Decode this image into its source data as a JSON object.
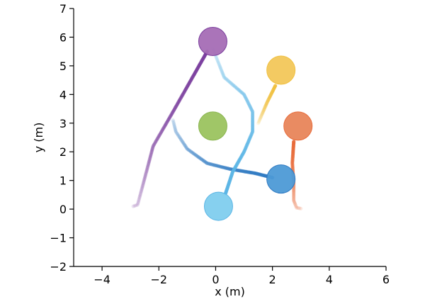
{
  "chart_data": {
    "type": "scatter",
    "title": "",
    "xlabel": "x (m)",
    "ylabel": "y (m)",
    "xlim": [
      -5,
      6
    ],
    "ylim": [
      -2,
      7
    ],
    "xticks": [
      -4,
      -2,
      0,
      2,
      4,
      6
    ],
    "yticks": [
      -2,
      -1,
      0,
      1,
      2,
      3,
      4,
      5,
      6,
      7
    ],
    "xtick_labels": [
      "−4",
      "−2",
      "0",
      "2",
      "4",
      "6"
    ],
    "ytick_labels": [
      "−2",
      "−1",
      "0",
      "1",
      "2",
      "3",
      "4",
      "5",
      "6",
      "7"
    ],
    "grid": false,
    "legend": "none",
    "series": [
      {
        "color": "#7b3f9e",
        "marker": {
          "x": -0.1,
          "y": 5.85
        },
        "marker_color": "#a56db5",
        "trajectory": [
          [
            -2.9,
            0.1
          ],
          [
            -2.75,
            0.15
          ],
          [
            -2.6,
            0.7
          ],
          [
            -2.2,
            2.2
          ],
          [
            -1.5,
            3.4
          ],
          [
            -0.7,
            4.8
          ],
          [
            -0.3,
            5.5
          ]
        ]
      },
      {
        "color": "#2f7ac2",
        "marker": {
          "x": 2.3,
          "y": 1.05
        },
        "marker_color": "#4d9ad6",
        "trajectory": [
          [
            -1.5,
            3.1
          ],
          [
            -1.4,
            2.7
          ],
          [
            -1.0,
            2.1
          ],
          [
            -0.3,
            1.6
          ],
          [
            0.5,
            1.4
          ],
          [
            1.4,
            1.25
          ],
          [
            2.0,
            1.1
          ]
        ]
      },
      {
        "color": "#5bb5e5",
        "marker": {
          "x": 0.1,
          "y": 0.1
        },
        "marker_color": "#7fcdee",
        "trajectory": [
          [
            -0.1,
            5.6
          ],
          [
            0.3,
            4.6
          ],
          [
            1.0,
            4.0
          ],
          [
            1.3,
            3.4
          ],
          [
            1.3,
            2.7
          ],
          [
            1.0,
            2.0
          ],
          [
            0.6,
            1.3
          ],
          [
            0.35,
            0.55
          ]
        ]
      },
      {
        "color": "#e86b3a",
        "marker": {
          "x": 2.9,
          "y": 2.9
        },
        "marker_color": "#e8855a",
        "trajectory": [
          [
            3.0,
            0.02
          ],
          [
            2.85,
            0.05
          ],
          [
            2.75,
            0.3
          ],
          [
            2.75,
            0.9
          ],
          [
            2.7,
            1.6
          ],
          [
            2.75,
            2.35
          ]
        ]
      },
      {
        "color": "#f0c040",
        "marker": {
          "x": 2.3,
          "y": 4.85
        },
        "marker_color": "#f2c75a",
        "trajectory": [
          [
            1.5,
            3.0
          ],
          [
            1.8,
            3.7
          ],
          [
            2.1,
            4.3
          ]
        ]
      },
      {
        "color": "#8ab550",
        "marker": {
          "x": -0.1,
          "y": 2.9
        },
        "marker_color": "#9bc35f",
        "trajectory": []
      }
    ]
  }
}
